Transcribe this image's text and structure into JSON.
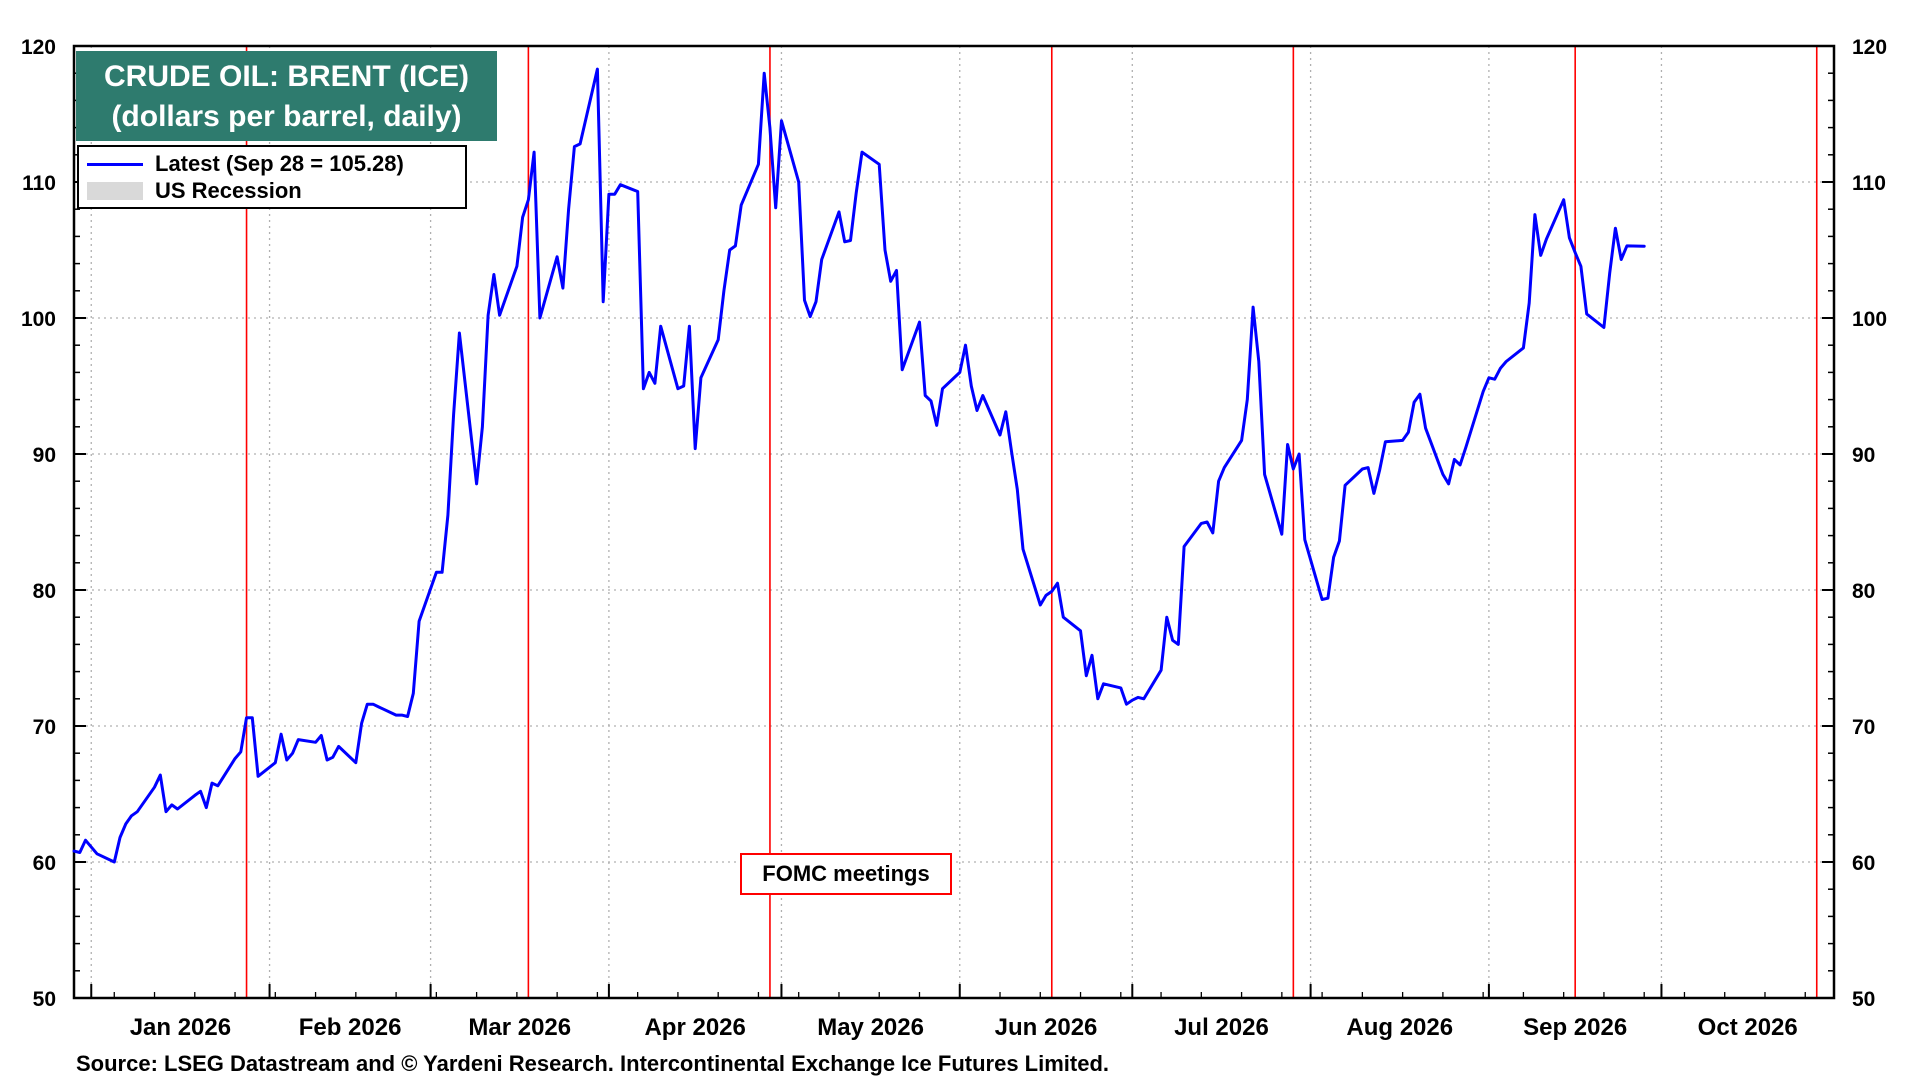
{
  "chart_data": {
    "type": "line",
    "title": "CRUDE OIL: BRENT (ICE)",
    "subtitle": "(dollars per barrel, daily)",
    "ylim": [
      50,
      120
    ],
    "y_ticks": [
      50,
      60,
      70,
      80,
      90,
      100,
      110,
      120
    ],
    "x_range": [
      "2025-12-29",
      "2026-10-31"
    ],
    "x_tick_labels": [
      "Jan 2026",
      "Feb 2026",
      "Mar 2026",
      "Apr 2026",
      "May 2026",
      "Jun 2026",
      "Jul 2026",
      "Aug 2026",
      "Sep 2026",
      "Oct 2026"
    ],
    "grid": true,
    "legend_position": "top-left",
    "legend": [
      {
        "label": "Latest (Sep 28 = 105.28)",
        "color": "#0000ff"
      },
      {
        "label": "US Recession",
        "color": "#d9d9d9"
      }
    ],
    "annotation": "FOMC meetings",
    "fomc_dates": [
      "2026-01-28",
      "2026-03-18",
      "2026-04-29",
      "2026-06-17",
      "2026-07-29",
      "2026-09-16",
      "2026-10-28"
    ],
    "series": [
      {
        "name": "Latest (Sep 28 = 105.28)",
        "color": "#0000ff",
        "points": [
          [
            "2025-12-29",
            60.8
          ],
          [
            "2025-12-30",
            60.7
          ],
          [
            "2025-12-31",
            61.6
          ],
          [
            "2026-01-02",
            60.6
          ],
          [
            "2026-01-05",
            60.0
          ],
          [
            "2026-01-06",
            61.8
          ],
          [
            "2026-01-07",
            62.8
          ],
          [
            "2026-01-08",
            63.4
          ],
          [
            "2026-01-09",
            63.7
          ],
          [
            "2026-01-12",
            65.5
          ],
          [
            "2026-01-13",
            66.4
          ],
          [
            "2026-01-14",
            63.7
          ],
          [
            "2026-01-15",
            64.2
          ],
          [
            "2026-01-16",
            63.9
          ],
          [
            "2026-01-19",
            64.9
          ],
          [
            "2026-01-20",
            65.2
          ],
          [
            "2026-01-21",
            64.0
          ],
          [
            "2026-01-22",
            65.8
          ],
          [
            "2026-01-23",
            65.6
          ],
          [
            "2026-01-26",
            67.6
          ],
          [
            "2026-01-27",
            68.1
          ],
          [
            "2026-01-28",
            70.6
          ],
          [
            "2026-01-29",
            70.6
          ],
          [
            "2026-01-30",
            66.3
          ],
          [
            "2026-02-02",
            67.3
          ],
          [
            "2026-02-03",
            69.4
          ],
          [
            "2026-02-04",
            67.5
          ],
          [
            "2026-02-05",
            68.0
          ],
          [
            "2026-02-06",
            69.0
          ],
          [
            "2026-02-09",
            68.8
          ],
          [
            "2026-02-10",
            69.3
          ],
          [
            "2026-02-11",
            67.5
          ],
          [
            "2026-02-12",
            67.7
          ],
          [
            "2026-02-13",
            68.5
          ],
          [
            "2026-02-16",
            67.3
          ],
          [
            "2026-02-17",
            70.2
          ],
          [
            "2026-02-18",
            71.6
          ],
          [
            "2026-02-19",
            71.6
          ],
          [
            "2026-02-20",
            71.4
          ],
          [
            "2026-02-23",
            70.8
          ],
          [
            "2026-02-24",
            70.8
          ],
          [
            "2026-02-25",
            70.7
          ],
          [
            "2026-02-26",
            72.4
          ],
          [
            "2026-02-27",
            77.7
          ],
          [
            "2026-03-02",
            81.3
          ],
          [
            "2026-03-03",
            81.3
          ],
          [
            "2026-03-04",
            85.5
          ],
          [
            "2026-03-05",
            92.9
          ],
          [
            "2026-03-06",
            98.9
          ],
          [
            "2026-03-09",
            87.8
          ],
          [
            "2026-03-10",
            92.0
          ],
          [
            "2026-03-11",
            100.2
          ],
          [
            "2026-03-12",
            103.2
          ],
          [
            "2026-03-13",
            100.2
          ],
          [
            "2026-03-16",
            103.8
          ],
          [
            "2026-03-17",
            107.4
          ],
          [
            "2026-03-18",
            108.7
          ],
          [
            "2026-03-19",
            112.2
          ],
          [
            "2026-03-20",
            100.0
          ],
          [
            "2026-03-23",
            104.5
          ],
          [
            "2026-03-24",
            102.2
          ],
          [
            "2026-03-25",
            108.0
          ],
          [
            "2026-03-26",
            112.6
          ],
          [
            "2026-03-27",
            112.8
          ],
          [
            "2026-03-30",
            118.3
          ],
          [
            "2026-03-31",
            101.2
          ],
          [
            "2026-04-01",
            109.1
          ],
          [
            "2026-04-02",
            109.1
          ],
          [
            "2026-04-03",
            109.8
          ],
          [
            "2026-04-06",
            109.3
          ],
          [
            "2026-04-07",
            94.8
          ],
          [
            "2026-04-08",
            96.0
          ],
          [
            "2026-04-09",
            95.2
          ],
          [
            "2026-04-10",
            99.4
          ],
          [
            "2026-04-13",
            94.8
          ],
          [
            "2026-04-14",
            95.0
          ],
          [
            "2026-04-15",
            99.4
          ],
          [
            "2026-04-16",
            90.4
          ],
          [
            "2026-04-17",
            95.6
          ],
          [
            "2026-04-20",
            98.4
          ],
          [
            "2026-04-21",
            102.0
          ],
          [
            "2026-04-22",
            105.0
          ],
          [
            "2026-04-23",
            105.3
          ],
          [
            "2026-04-24",
            108.3
          ],
          [
            "2026-04-27",
            111.3
          ],
          [
            "2026-04-28",
            118.0
          ],
          [
            "2026-04-29",
            114.0
          ],
          [
            "2026-04-30",
            108.1
          ],
          [
            "2026-05-01",
            114.5
          ],
          [
            "2026-05-04",
            110.0
          ],
          [
            "2026-05-05",
            101.3
          ],
          [
            "2026-05-06",
            100.1
          ],
          [
            "2026-05-07",
            101.2
          ],
          [
            "2026-05-08",
            104.3
          ],
          [
            "2026-05-11",
            107.8
          ],
          [
            "2026-05-12",
            105.6
          ],
          [
            "2026-05-13",
            105.7
          ],
          [
            "2026-05-14",
            109.2
          ],
          [
            "2026-05-15",
            112.2
          ],
          [
            "2026-05-18",
            111.3
          ],
          [
            "2026-05-19",
            105.0
          ],
          [
            "2026-05-20",
            102.7
          ],
          [
            "2026-05-21",
            103.5
          ],
          [
            "2026-05-22",
            96.2
          ],
          [
            "2026-05-25",
            99.7
          ],
          [
            "2026-05-26",
            94.3
          ],
          [
            "2026-05-27",
            93.9
          ],
          [
            "2026-05-28",
            92.1
          ],
          [
            "2026-05-29",
            94.8
          ],
          [
            "2026-06-01",
            96.0
          ],
          [
            "2026-06-02",
            98.0
          ],
          [
            "2026-06-03",
            95.0
          ],
          [
            "2026-06-04",
            93.2
          ],
          [
            "2026-06-05",
            94.3
          ],
          [
            "2026-06-08",
            91.4
          ],
          [
            "2026-06-09",
            93.1
          ],
          [
            "2026-06-10",
            90.2
          ],
          [
            "2026-06-11",
            87.4
          ],
          [
            "2026-06-12",
            83.0
          ],
          [
            "2026-06-15",
            78.9
          ],
          [
            "2026-06-16",
            79.6
          ],
          [
            "2026-06-17",
            79.9
          ],
          [
            "2026-06-18",
            80.5
          ],
          [
            "2026-06-19",
            78.0
          ],
          [
            "2026-06-22",
            77.0
          ],
          [
            "2026-06-23",
            73.7
          ],
          [
            "2026-06-24",
            75.2
          ],
          [
            "2026-06-25",
            72.0
          ],
          [
            "2026-06-26",
            73.1
          ],
          [
            "2026-06-29",
            72.8
          ],
          [
            "2026-06-30",
            71.6
          ],
          [
            "2026-07-01",
            71.9
          ],
          [
            "2026-07-02",
            72.1
          ],
          [
            "2026-07-03",
            72.0
          ],
          [
            "2026-07-06",
            74.1
          ],
          [
            "2026-07-07",
            78.0
          ],
          [
            "2026-07-08",
            76.3
          ],
          [
            "2026-07-09",
            76.0
          ],
          [
            "2026-07-10",
            83.2
          ],
          [
            "2026-07-13",
            84.9
          ],
          [
            "2026-07-14",
            85.0
          ],
          [
            "2026-07-15",
            84.2
          ],
          [
            "2026-07-16",
            88.0
          ],
          [
            "2026-07-17",
            89.0
          ],
          [
            "2026-07-20",
            91.0
          ],
          [
            "2026-07-21",
            94.0
          ],
          [
            "2026-07-22",
            100.8
          ],
          [
            "2026-07-23",
            96.8
          ],
          [
            "2026-07-24",
            88.5
          ],
          [
            "2026-07-27",
            84.1
          ],
          [
            "2026-07-28",
            90.7
          ],
          [
            "2026-07-29",
            88.9
          ],
          [
            "2026-07-30",
            90.0
          ],
          [
            "2026-07-31",
            83.7
          ],
          [
            "2026-08-03",
            79.3
          ],
          [
            "2026-08-04",
            79.4
          ],
          [
            "2026-08-05",
            82.4
          ],
          [
            "2026-08-06",
            83.6
          ],
          [
            "2026-08-07",
            87.7
          ],
          [
            "2026-08-10",
            88.9
          ],
          [
            "2026-08-11",
            89.0
          ],
          [
            "2026-08-12",
            87.1
          ],
          [
            "2026-08-13",
            88.8
          ],
          [
            "2026-08-14",
            90.9
          ],
          [
            "2026-08-17",
            91.0
          ],
          [
            "2026-08-18",
            91.6
          ],
          [
            "2026-08-19",
            93.8
          ],
          [
            "2026-08-20",
            94.4
          ],
          [
            "2026-08-21",
            91.9
          ],
          [
            "2026-08-24",
            88.5
          ],
          [
            "2026-08-25",
            87.8
          ],
          [
            "2026-08-26",
            89.6
          ],
          [
            "2026-08-27",
            89.2
          ],
          [
            "2026-08-28",
            90.5
          ],
          [
            "2026-08-31",
            94.6
          ],
          [
            "2026-09-01",
            95.6
          ],
          [
            "2026-09-02",
            95.5
          ],
          [
            "2026-09-03",
            96.3
          ],
          [
            "2026-09-04",
            96.8
          ],
          [
            "2026-09-07",
            97.8
          ],
          [
            "2026-09-08",
            101.1
          ],
          [
            "2026-09-09",
            107.6
          ],
          [
            "2026-09-10",
            104.6
          ],
          [
            "2026-09-11",
            105.8
          ],
          [
            "2026-09-14",
            108.7
          ],
          [
            "2026-09-15",
            105.9
          ],
          [
            "2026-09-16",
            104.8
          ],
          [
            "2026-09-17",
            103.8
          ],
          [
            "2026-09-18",
            100.3
          ],
          [
            "2026-09-21",
            99.3
          ],
          [
            "2026-09-22",
            103.3
          ],
          [
            "2026-09-23",
            106.6
          ],
          [
            "2026-09-24",
            104.3
          ],
          [
            "2026-09-25",
            105.3
          ],
          [
            "2026-09-28",
            105.28
          ]
        ]
      }
    ]
  },
  "source": "Source: LSEG Datastream and © Yardeni Research. Intercontinental Exchange Ice Futures Limited."
}
